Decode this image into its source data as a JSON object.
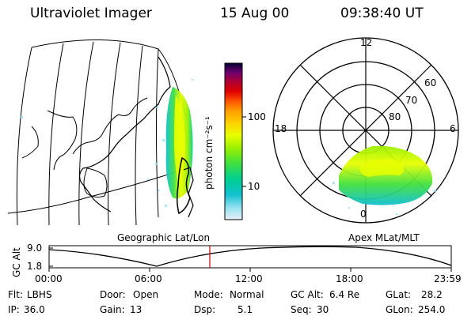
{
  "header": {
    "instrument": "Ultraviolet Imager",
    "date": "15 Aug 00",
    "time": "09:38:40 UT"
  },
  "colorbar": {
    "unit_label": "photon cm⁻²s⁻¹",
    "ticks": [
      "100",
      "10"
    ],
    "colors": [
      "#000030",
      "#3a0050",
      "#700070",
      "#b00030",
      "#e00000",
      "#ff5000",
      "#ff9a00",
      "#ffd000",
      "#e8ff00",
      "#9cf000",
      "#40e040",
      "#00d090",
      "#10c0d0",
      "#90e0f0",
      "#e8f0f8"
    ]
  },
  "panels": {
    "left_title": "Geographic Lat/Lon",
    "right_title": "Apex MLat/MLT"
  },
  "polar_plot": {
    "mlt_labels": [
      "12",
      "18",
      "6",
      "0"
    ],
    "lat_labels": [
      "60",
      "70",
      "80"
    ]
  },
  "altitude_plot": {
    "ylabel": "GC Alt",
    "yticks": [
      "9.0",
      "1.8"
    ],
    "xticks": [
      "00:00",
      "06:00",
      "12:00",
      "18:00",
      "23:59"
    ],
    "marker_color": "#d00000"
  },
  "footer": {
    "row1": [
      {
        "label": "Flt:",
        "value": "LBHS"
      },
      {
        "label": "Door:",
        "value": "Open"
      },
      {
        "label": "Mode:",
        "value": "Normal"
      },
      {
        "label": "GC Alt:",
        "value": "6.4 Re"
      },
      {
        "label": "GLat:",
        "value": "28.2"
      }
    ],
    "row2": [
      {
        "label": "IP:",
        "value": "36.0"
      },
      {
        "label": "Gain:",
        "value": "13"
      },
      {
        "label": "Dsp:",
        "value": "5.1"
      },
      {
        "label": "Seq:",
        "value": "30"
      },
      {
        "label": "GLon:",
        "value": "254.0"
      }
    ]
  }
}
